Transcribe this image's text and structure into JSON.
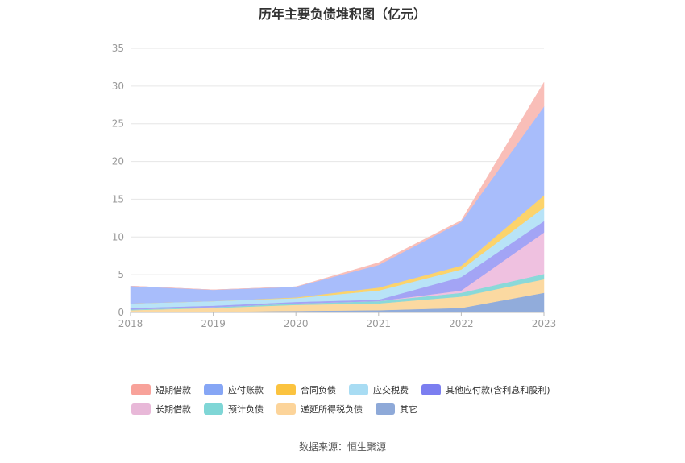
{
  "title": "历年主要负债堆积图（亿元）",
  "source": "数据来源：恒生聚源",
  "chart_data": {
    "type": "area",
    "stacked": true,
    "x": [
      "2018",
      "2019",
      "2020",
      "2021",
      "2022",
      "2023"
    ],
    "ylim": [
      0,
      35
    ],
    "yticks": [
      0,
      5,
      10,
      15,
      20,
      25,
      30,
      35
    ],
    "grid": true,
    "legend_position": "bottom",
    "series": [
      {
        "name": "其它",
        "color": "#91acdb",
        "values": [
          0.1,
          0.1,
          0.2,
          0.3,
          0.6,
          2.6
        ]
      },
      {
        "name": "递延所得税负债",
        "color": "#fbd9a1",
        "values": [
          0.2,
          0.5,
          0.8,
          0.9,
          1.5,
          1.8
        ]
      },
      {
        "name": "预计负债",
        "color": "#8ad9d9",
        "values": [
          0.1,
          0.1,
          0.2,
          0.3,
          0.5,
          0.7
        ]
      },
      {
        "name": "长期借款",
        "color": "#efc1e0",
        "values": [
          0.0,
          0.0,
          0.0,
          0.0,
          0.3,
          5.5
        ]
      },
      {
        "name": "其他应付款(含利息和股利)",
        "color": "#a3a4f5",
        "values": [
          0.2,
          0.2,
          0.2,
          0.2,
          1.8,
          1.5
        ]
      },
      {
        "name": "应交税费",
        "color": "#b8e3f7",
        "values": [
          0.6,
          0.6,
          0.5,
          1.2,
          1.0,
          1.8
        ]
      },
      {
        "name": "合同负债",
        "color": "#fcd36b",
        "values": [
          0.0,
          0.0,
          0.1,
          0.4,
          0.5,
          1.6
        ]
      },
      {
        "name": "应付账款",
        "color": "#a8bdfb",
        "values": [
          2.3,
          1.5,
          1.4,
          3.0,
          5.8,
          11.8
        ]
      },
      {
        "name": "短期借款",
        "color": "#f9beb8",
        "values": [
          0.0,
          0.0,
          0.0,
          0.3,
          0.2,
          3.2
        ]
      }
    ]
  },
  "legend": {
    "row1": [
      {
        "label": "短期借款",
        "color": "#f8a29a"
      },
      {
        "label": "应付账款",
        "color": "#86a6f5"
      },
      {
        "label": "合同负债",
        "color": "#fbc33f"
      },
      {
        "label": "应交税费",
        "color": "#a8dcf3"
      },
      {
        "label": "其他应付款(含利息和股利)",
        "color": "#7b7ef0"
      }
    ],
    "row2": [
      {
        "label": "长期借款",
        "color": "#e8b8d8"
      },
      {
        "label": "预计负债",
        "color": "#7fd6d6"
      },
      {
        "label": "递延所得税负债",
        "color": "#fcd49a"
      },
      {
        "label": "其它",
        "color": "#8ea9d8"
      }
    ]
  }
}
